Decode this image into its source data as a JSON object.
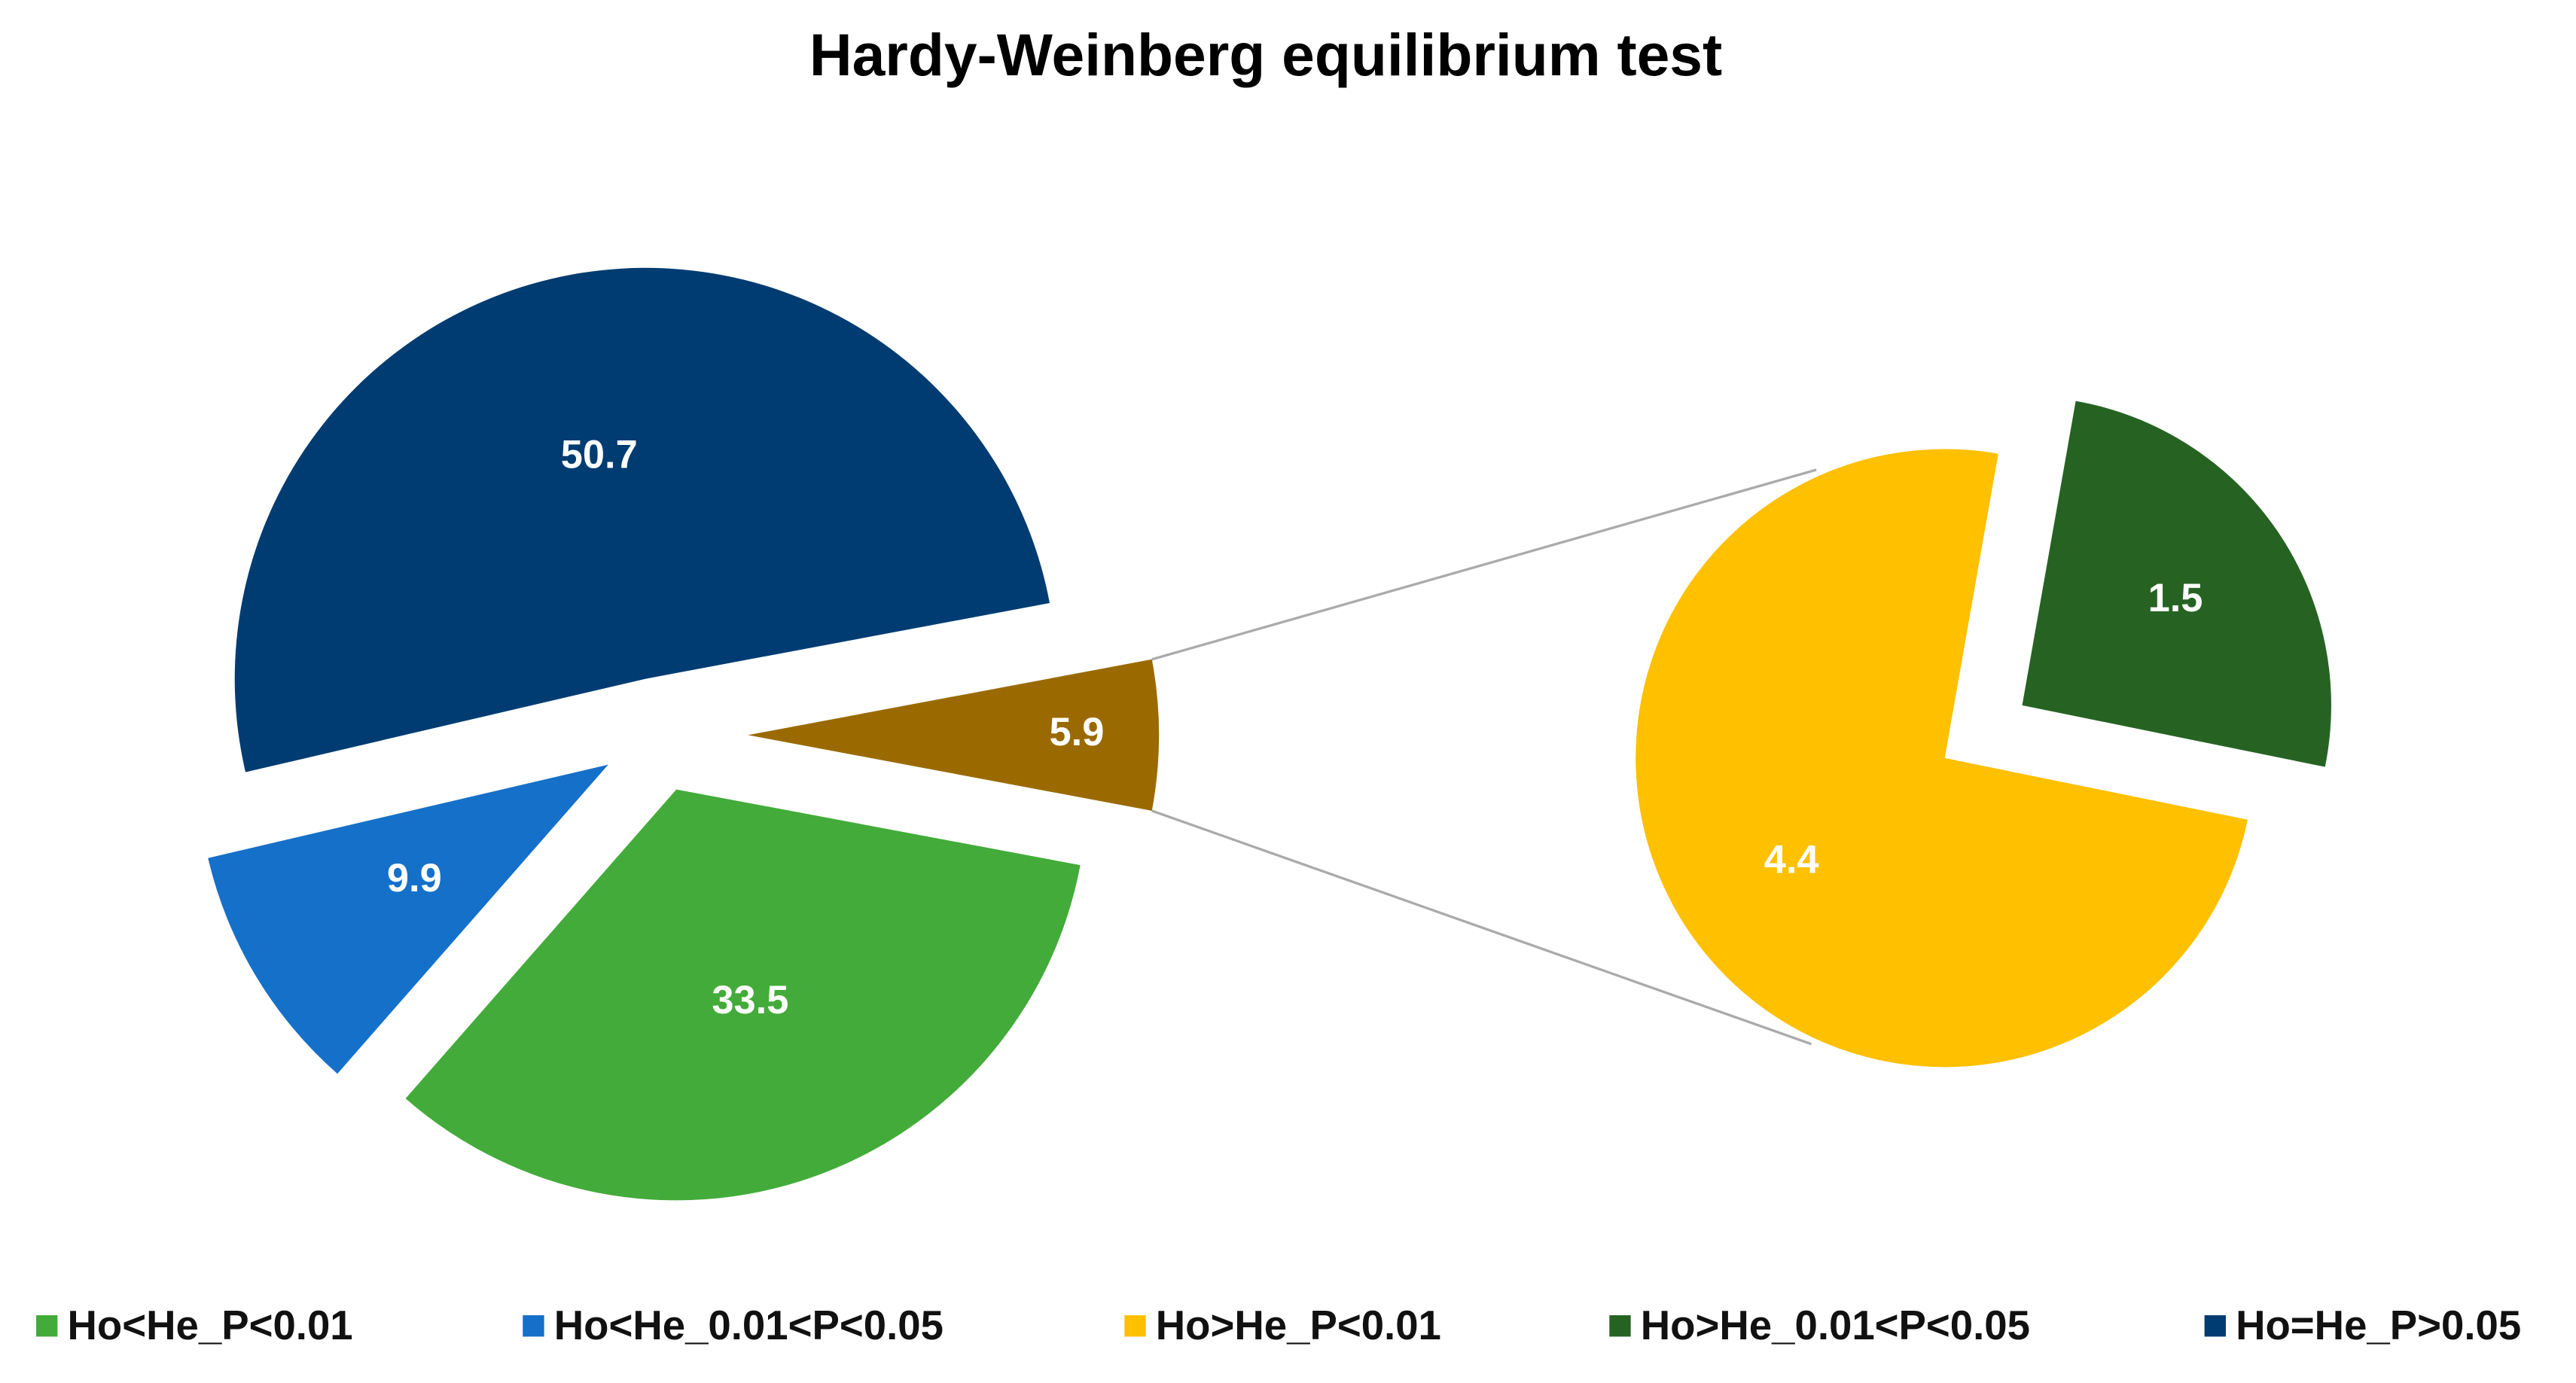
{
  "chart_data": {
    "type": "pie-of-pie",
    "title": "Hardy-Weinberg equilibrium test",
    "other": {
      "value": 5.9,
      "color": "#9a6a00"
    },
    "series": [
      {
        "name": "Ho<He_P<0.01",
        "color": "#43ab3a",
        "value": 33.5,
        "pie": "main"
      },
      {
        "name": "Ho<He_0.01<P<0.05",
        "color": "#1570c9",
        "value": 9.9,
        "pie": "main"
      },
      {
        "name": "Ho>He_P<0.01",
        "color": "#ffc000",
        "value": 4.4,
        "pie": "secondary"
      },
      {
        "name": "Ho>He_0.01<P<0.05",
        "color": "#266323",
        "value": 1.5,
        "pie": "secondary"
      },
      {
        "name": "Ho=He_P>0.05",
        "color": "#003c71",
        "value": 50.7,
        "pie": "main"
      }
    ]
  }
}
